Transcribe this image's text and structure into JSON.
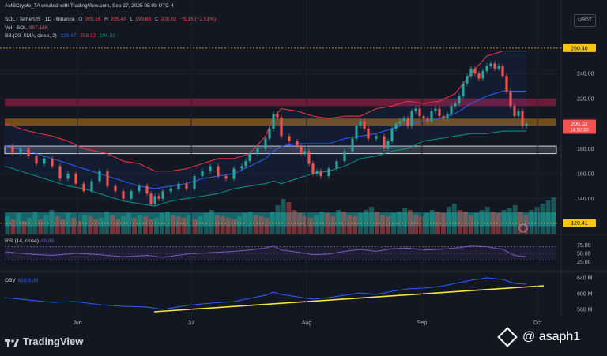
{
  "header": {
    "credit": "AMBCrypto_TA created with TradingView.com, Sep 27, 2025 05:09 UTC-4",
    "symbol": "SOL / TetherUS · 1D · Binance",
    "ohlc": {
      "o_label": "O",
      "o": "205.16",
      "h_label": "H",
      "h": "205.43",
      "l_label": "L",
      "l": "199.88",
      "c_label": "C",
      "c": "200.02",
      "change": "−5.15 (−2.51%)"
    },
    "vol_label": "Vol · SOL",
    "vol": "967.18K",
    "bb_label": "BB (20, SMA, close, 2)",
    "bb_basis": "226.47",
    "bb_upper": "258.12",
    "bb_lower": "194.82",
    "rsi_label": "RSI (14, close)",
    "rsi_value": "40.88",
    "obv_label": "OBV",
    "obv_value": "618.91M",
    "currency": "USDT"
  },
  "chart_data": {
    "type": "candlestick",
    "x_ticks": [
      "Jun",
      "Jul",
      "Aug",
      "Sep",
      "Oct"
    ],
    "price_ticks": [
      140,
      160,
      180,
      200,
      220,
      240
    ],
    "price_range": [
      112,
      266
    ],
    "price_tags": [
      {
        "value": 260.4,
        "label": "260.40",
        "color": "#f5c518"
      },
      {
        "value": 200.02,
        "label": "200.02",
        "sub": "14:50:30",
        "color": "#ef5350"
      },
      {
        "value": 120.41,
        "label": "120.41",
        "color": "#f5c518"
      }
    ],
    "zones": [
      {
        "name": "resistance-zone",
        "from": 214,
        "to": 220,
        "color": "#b2224a"
      },
      {
        "name": "current-zone",
        "from": 198,
        "to": 204,
        "color": "#c17a12"
      },
      {
        "name": "support-zone",
        "from": 176,
        "to": 182,
        "color": "#d1d4dc"
      },
      {
        "name": "volume-zone",
        "from": 118,
        "to": 129,
        "color": "#1fa5a5"
      }
    ],
    "price_path": [
      [
        0,
        182
      ],
      [
        10,
        176
      ],
      [
        20,
        180
      ],
      [
        30,
        174
      ],
      [
        40,
        168
      ],
      [
        50,
        172
      ],
      [
        60,
        166
      ],
      [
        70,
        156
      ],
      [
        80,
        160
      ],
      [
        90,
        152
      ],
      [
        100,
        146
      ],
      [
        110,
        154
      ],
      [
        120,
        162
      ],
      [
        130,
        150
      ],
      [
        140,
        146
      ],
      [
        150,
        140
      ],
      [
        160,
        146
      ],
      [
        170,
        150
      ],
      [
        180,
        144
      ],
      [
        185,
        136
      ],
      [
        190,
        142
      ],
      [
        195,
        140
      ],
      [
        200,
        146
      ],
      [
        210,
        148
      ],
      [
        220,
        152
      ],
      [
        230,
        148
      ],
      [
        240,
        158
      ],
      [
        250,
        162
      ],
      [
        260,
        166
      ],
      [
        270,
        158
      ],
      [
        280,
        156
      ],
      [
        290,
        164
      ],
      [
        300,
        166
      ],
      [
        305,
        170
      ],
      [
        310,
        176
      ],
      [
        320,
        180
      ],
      [
        330,
        188
      ],
      [
        335,
        196
      ],
      [
        340,
        208
      ],
      [
        345,
        205
      ],
      [
        350,
        190
      ],
      [
        360,
        186
      ],
      [
        370,
        182
      ],
      [
        375,
        176
      ],
      [
        380,
        178
      ],
      [
        385,
        168
      ],
      [
        390,
        160
      ],
      [
        395,
        162
      ],
      [
        400,
        158
      ],
      [
        410,
        164
      ],
      [
        420,
        170
      ],
      [
        430,
        178
      ],
      [
        440,
        188
      ],
      [
        445,
        198
      ],
      [
        450,
        202
      ],
      [
        455,
        196
      ],
      [
        460,
        188
      ],
      [
        470,
        190
      ],
      [
        480,
        180
      ],
      [
        485,
        186
      ],
      [
        490,
        196
      ],
      [
        495,
        200
      ],
      [
        500,
        202
      ],
      [
        505,
        204
      ],
      [
        510,
        198
      ],
      [
        515,
        210
      ],
      [
        520,
        212
      ],
      [
        525,
        206
      ],
      [
        530,
        204
      ],
      [
        535,
        202
      ],
      [
        540,
        210
      ],
      [
        545,
        212
      ],
      [
        550,
        206
      ],
      [
        555,
        204
      ],
      [
        560,
        208
      ],
      [
        565,
        214
      ],
      [
        570,
        216
      ],
      [
        575,
        222
      ],
      [
        580,
        232
      ],
      [
        585,
        238
      ],
      [
        590,
        244
      ],
      [
        595,
        240
      ],
      [
        600,
        236
      ],
      [
        605,
        242
      ],
      [
        610,
        246
      ],
      [
        615,
        248
      ],
      [
        620,
        244
      ],
      [
        625,
        246
      ],
      [
        630,
        238
      ],
      [
        635,
        226
      ],
      [
        640,
        214
      ],
      [
        645,
        206
      ],
      [
        650,
        210
      ],
      [
        655,
        198
      ],
      [
        660,
        200
      ]
    ],
    "bb_upper_path": [
      [
        0,
        200
      ],
      [
        30,
        194
      ],
      [
        60,
        190
      ],
      [
        80,
        186
      ],
      [
        100,
        180
      ],
      [
        130,
        176
      ],
      [
        150,
        170
      ],
      [
        170,
        168
      ],
      [
        190,
        162
      ],
      [
        210,
        162
      ],
      [
        230,
        164
      ],
      [
        250,
        168
      ],
      [
        270,
        172
      ],
      [
        290,
        172
      ],
      [
        310,
        176
      ],
      [
        330,
        190
      ],
      [
        340,
        205
      ],
      [
        350,
        212
      ],
      [
        370,
        210
      ],
      [
        390,
        206
      ],
      [
        410,
        204
      ],
      [
        430,
        206
      ],
      [
        450,
        206
      ],
      [
        470,
        212
      ],
      [
        490,
        214
      ],
      [
        510,
        218
      ],
      [
        530,
        216
      ],
      [
        550,
        218
      ],
      [
        570,
        224
      ],
      [
        590,
        240
      ],
      [
        610,
        254
      ],
      [
        630,
        258
      ],
      [
        650,
        258
      ],
      [
        660,
        258
      ]
    ],
    "bb_basis_path": [
      [
        0,
        182
      ],
      [
        30,
        178
      ],
      [
        60,
        172
      ],
      [
        80,
        168
      ],
      [
        100,
        164
      ],
      [
        130,
        158
      ],
      [
        150,
        154
      ],
      [
        170,
        150
      ],
      [
        190,
        148
      ],
      [
        210,
        150
      ],
      [
        230,
        152
      ],
      [
        250,
        156
      ],
      [
        270,
        158
      ],
      [
        290,
        160
      ],
      [
        310,
        166
      ],
      [
        330,
        172
      ],
      [
        340,
        178
      ],
      [
        350,
        182
      ],
      [
        370,
        184
      ],
      [
        390,
        184
      ],
      [
        410,
        184
      ],
      [
        430,
        188
      ],
      [
        450,
        190
      ],
      [
        470,
        192
      ],
      [
        490,
        196
      ],
      [
        510,
        200
      ],
      [
        530,
        202
      ],
      [
        550,
        204
      ],
      [
        570,
        208
      ],
      [
        590,
        216
      ],
      [
        610,
        222
      ],
      [
        630,
        226
      ],
      [
        650,
        226
      ],
      [
        660,
        226
      ]
    ],
    "bb_lower_path": [
      [
        0,
        166
      ],
      [
        30,
        160
      ],
      [
        60,
        154
      ],
      [
        80,
        150
      ],
      [
        100,
        148
      ],
      [
        130,
        142
      ],
      [
        150,
        138
      ],
      [
        170,
        136
      ],
      [
        190,
        134
      ],
      [
        210,
        138
      ],
      [
        230,
        140
      ],
      [
        250,
        142
      ],
      [
        270,
        144
      ],
      [
        290,
        148
      ],
      [
        310,
        150
      ],
      [
        330,
        152
      ],
      [
        340,
        154
      ],
      [
        350,
        152
      ],
      [
        370,
        156
      ],
      [
        390,
        160
      ],
      [
        410,
        162
      ],
      [
        430,
        166
      ],
      [
        450,
        172
      ],
      [
        470,
        174
      ],
      [
        490,
        178
      ],
      [
        510,
        180
      ],
      [
        530,
        186
      ],
      [
        550,
        188
      ],
      [
        570,
        190
      ],
      [
        590,
        192
      ],
      [
        610,
        192
      ],
      [
        630,
        194
      ],
      [
        650,
        194
      ],
      [
        660,
        194
      ]
    ],
    "volume_bars": [
      22,
      18,
      26,
      16,
      20,
      28,
      18,
      24,
      30,
      22,
      18,
      26,
      20,
      16,
      24,
      22,
      18,
      20,
      28,
      24,
      18,
      22,
      26,
      20,
      24,
      22,
      18,
      20,
      26,
      28,
      24,
      22,
      20,
      24,
      18,
      22,
      26,
      30,
      24,
      22,
      20,
      18,
      22,
      26,
      28,
      24,
      22,
      20,
      28,
      36,
      44,
      40,
      30,
      26,
      22,
      20,
      24,
      28,
      26,
      22,
      30,
      28,
      24,
      22,
      26,
      30,
      34,
      28,
      24,
      22,
      26,
      28,
      32,
      30,
      24,
      22,
      26,
      30,
      28,
      26,
      34,
      38,
      30,
      28,
      24,
      26,
      30,
      34,
      28,
      26,
      30,
      32,
      36,
      28,
      24,
      30,
      34,
      38,
      42,
      46
    ],
    "rsi_ticks": [
      75.0,
      50.0,
      25.0
    ],
    "rsi_path": [
      [
        0,
        55
      ],
      [
        30,
        48
      ],
      [
        60,
        44
      ],
      [
        90,
        50
      ],
      [
        120,
        46
      ],
      [
        150,
        40
      ],
      [
        180,
        44
      ],
      [
        200,
        38
      ],
      [
        230,
        48
      ],
      [
        260,
        52
      ],
      [
        290,
        56
      ],
      [
        310,
        60
      ],
      [
        330,
        66
      ],
      [
        340,
        72
      ],
      [
        350,
        60
      ],
      [
        370,
        54
      ],
      [
        390,
        46
      ],
      [
        410,
        48
      ],
      [
        430,
        56
      ],
      [
        450,
        62
      ],
      [
        470,
        56
      ],
      [
        490,
        64
      ],
      [
        510,
        66
      ],
      [
        530,
        60
      ],
      [
        550,
        62
      ],
      [
        570,
        66
      ],
      [
        590,
        72
      ],
      [
        610,
        70
      ],
      [
        630,
        62
      ],
      [
        645,
        44
      ],
      [
        660,
        40
      ]
    ],
    "obv_ticks": [
      "640 M",
      "600 M",
      "560 M"
    ],
    "obv_path": [
      [
        0,
        590
      ],
      [
        30,
        584
      ],
      [
        60,
        578
      ],
      [
        90,
        580
      ],
      [
        120,
        572
      ],
      [
        150,
        568
      ],
      [
        180,
        566
      ],
      [
        200,
        560
      ],
      [
        230,
        570
      ],
      [
        260,
        576
      ],
      [
        290,
        580
      ],
      [
        310,
        588
      ],
      [
        330,
        596
      ],
      [
        340,
        604
      ],
      [
        350,
        598
      ],
      [
        370,
        592
      ],
      [
        390,
        586
      ],
      [
        410,
        590
      ],
      [
        430,
        596
      ],
      [
        450,
        602
      ],
      [
        470,
        598
      ],
      [
        490,
        606
      ],
      [
        510,
        612
      ],
      [
        530,
        614
      ],
      [
        550,
        618
      ],
      [
        570,
        626
      ],
      [
        590,
        634
      ],
      [
        610,
        640
      ],
      [
        630,
        636
      ],
      [
        645,
        626
      ],
      [
        660,
        624
      ]
    ],
    "trendline": [
      [
        195,
        554
      ],
      [
        688,
        620
      ]
    ]
  },
  "footer": {
    "brand": "TradingView",
    "watermark": "@ asaph1"
  }
}
